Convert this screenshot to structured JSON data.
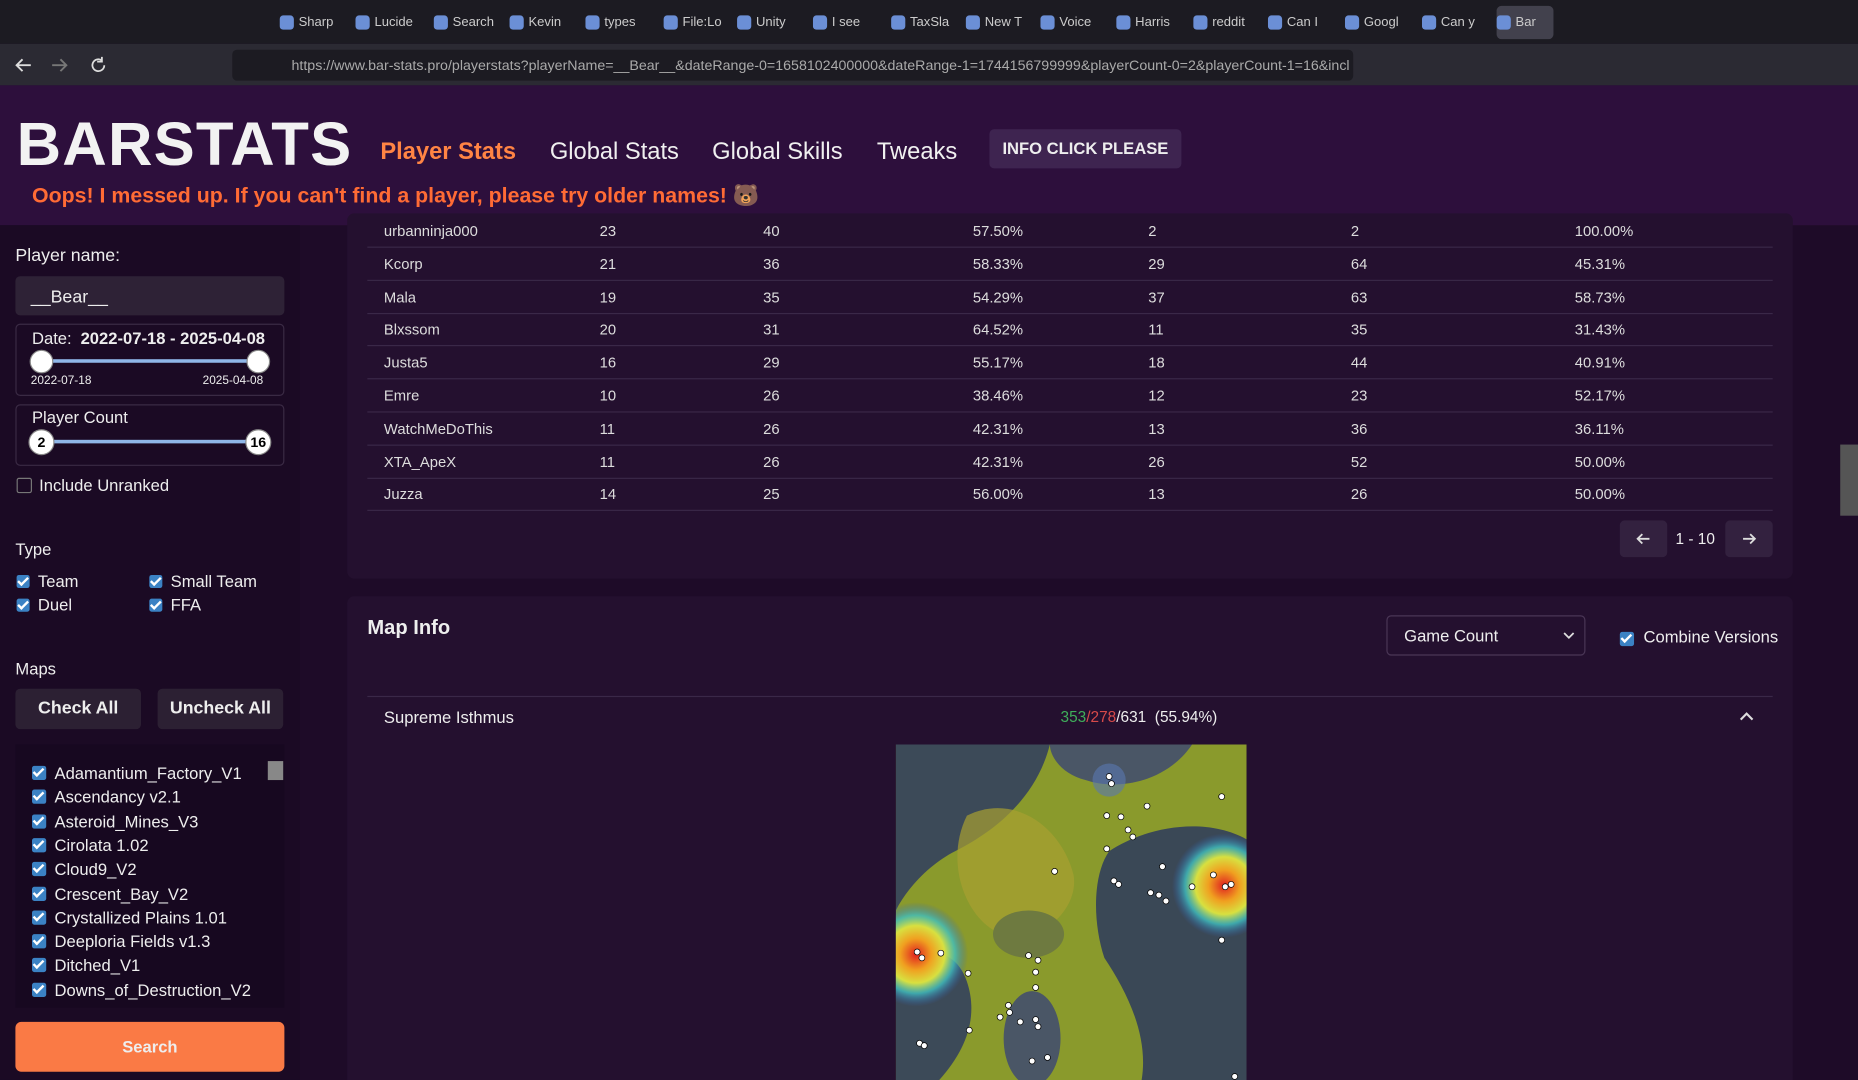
{
  "browser": {
    "tabs": [
      "Sharp",
      "Lucide",
      "Search",
      "Kevin",
      "types",
      "File:Lo",
      "Unity",
      "I see",
      "TaxSla",
      "New T",
      "Voice",
      "Harris",
      "reddit",
      "Can I",
      "Googl",
      "Can y",
      "Bar"
    ],
    "url": "https://www.bar-stats.pro/playerstats?playerName=__Bear__&dateRange-0=1658102400000&dateRange-1=1744156799999&playerCount-0=2&playerCount-1=16&incl"
  },
  "header": {
    "logo": "BARSTATS",
    "nav": [
      "Player Stats",
      "Global Stats",
      "Global Skills",
      "Tweaks"
    ],
    "info_button": "INFO CLICK PLEASE",
    "notice": "Oops! I messed up. If you can't find a player, please try older names! 🐻"
  },
  "sidebar": {
    "player_name_label": "Player name:",
    "player_name": "__Bear__",
    "date": {
      "label": "Date:",
      "range": "2022-07-18 - 2025-04-08",
      "min": "2022-07-18",
      "max": "2025-04-08"
    },
    "player_count": {
      "label": "Player Count",
      "min": "2",
      "max": "16"
    },
    "include_unranked": "Include Unranked",
    "type": {
      "label": "Type",
      "options": [
        "Team",
        "Small Team",
        "Duel",
        "FFA"
      ]
    },
    "maps": {
      "label": "Maps",
      "check_all": "Check All",
      "uncheck_all": "Uncheck All",
      "list": [
        "Adamantium_Factory_V1",
        "Ascendancy v2.1",
        "Asteroid_Mines_V3",
        "Cirolata 1.02",
        "Cloud9_V2",
        "Crescent_Bay_V2",
        "Crystallized Plains 1.01",
        "Deeploria Fields v1.3",
        "Ditched_V1",
        "Downs_of_Destruction_V2"
      ]
    },
    "search": "Search"
  },
  "table": {
    "rows": [
      [
        "urbanninja000",
        "23",
        "40",
        "57.50%",
        "2",
        "2",
        "100.00%"
      ],
      [
        "Kcorp",
        "21",
        "36",
        "58.33%",
        "29",
        "64",
        "45.31%"
      ],
      [
        "Mala",
        "19",
        "35",
        "54.29%",
        "37",
        "63",
        "58.73%"
      ],
      [
        "Blxssom",
        "20",
        "31",
        "64.52%",
        "11",
        "35",
        "31.43%"
      ],
      [
        "Justa5",
        "16",
        "29",
        "55.17%",
        "18",
        "44",
        "40.91%"
      ],
      [
        "Emre",
        "10",
        "26",
        "38.46%",
        "12",
        "23",
        "52.17%"
      ],
      [
        "WatchMeDoThis",
        "11",
        "26",
        "42.31%",
        "13",
        "36",
        "36.11%"
      ],
      [
        "XTA_ApeX",
        "11",
        "26",
        "42.31%",
        "26",
        "52",
        "50.00%"
      ],
      [
        "Juzza",
        "14",
        "25",
        "56.00%",
        "13",
        "26",
        "50.00%"
      ]
    ],
    "pagination": "1 - 10"
  },
  "map_info": {
    "title": "Map Info",
    "sort_select": "Game Count",
    "combine_versions": "Combine Versions",
    "map_name": "Supreme Isthmus",
    "record_parts": [
      "353",
      "/278",
      "/631"
    ],
    "win_rate": "(55.94%)"
  }
}
